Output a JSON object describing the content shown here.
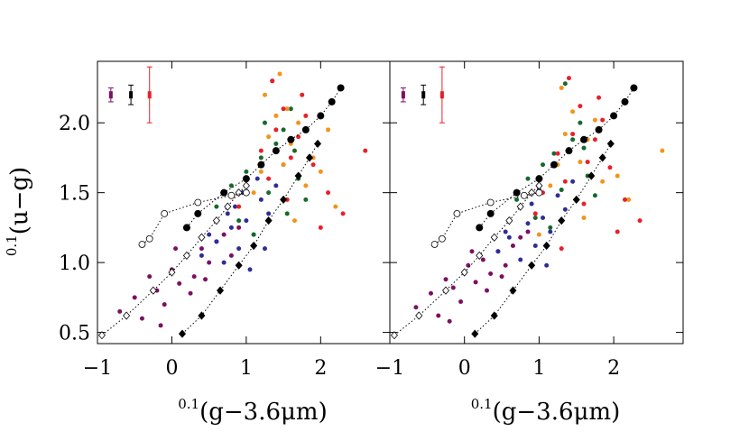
{
  "chart_data": [
    {
      "type": "scatter",
      "xlabel_sup": "0.1",
      "xlabel": "(g−3.6μm)",
      "ylabel_sup": "0.1",
      "ylabel": "(u−g)",
      "xlim": [
        -1,
        2.93
      ],
      "ylim": [
        0.42,
        2.44
      ],
      "xticks": [
        {
          "value": -1,
          "label": "−1"
        },
        0,
        1,
        2
      ],
      "yticks": [
        0.5,
        {
          "value": 1.0,
          "label": "1.0"
        },
        1.5,
        {
          "value": 2.0,
          "label": "2.0"
        }
      ],
      "show_yticklabels": true,
      "series": [
        {
          "color": "#7c1060",
          "marker": "circle-filled",
          "x": [
            -0.7,
            -0.5,
            -0.4,
            -0.3,
            -0.2,
            -0.1,
            0,
            0.1,
            0.2,
            0.3,
            0.4,
            0.5,
            0.6,
            0.7,
            0.9,
            -0.15,
            0.25,
            0.05,
            0.45,
            0.8
          ],
          "y": [
            0.65,
            0.75,
            0.6,
            0.9,
            0.8,
            0.7,
            0.95,
            0.85,
            1.05,
            0.9,
            1.1,
            1.0,
            1.15,
            1.2,
            1.25,
            0.55,
            0.78,
            1.1,
            0.88,
            1.05
          ]
        },
        {
          "color": "#2e2e94",
          "marker": "circle-filled",
          "x": [
            0.4,
            0.6,
            0.7,
            0.8,
            0.9,
            1.0,
            1.1,
            1.2,
            1.3,
            0.5,
            0.85,
            1.05,
            1.4,
            0.95,
            1.15,
            0.75,
            1.25,
            1.5
          ],
          "y": [
            1.05,
            1.15,
            1.0,
            1.25,
            1.1,
            1.3,
            1.2,
            1.45,
            1.35,
            1.2,
            1.4,
            0.95,
            1.55,
            1.5,
            1.6,
            1.35,
            1.1,
            1.7
          ]
        },
        {
          "color": "#17692b",
          "marker": "circle-filled",
          "x": [
            0.6,
            0.8,
            1.0,
            1.2,
            1.3,
            1.4,
            1.5,
            1.6,
            1.7,
            1.8,
            1.1,
            0.9,
            1.35,
            1.55,
            1.25,
            1.65
          ],
          "y": [
            1.4,
            1.55,
            1.65,
            1.75,
            1.5,
            1.85,
            1.95,
            2.1,
            1.6,
            1.45,
            1.2,
            1.3,
            2.3,
            1.35,
            2.0,
            1.8
          ]
        },
        {
          "color": "#f39419",
          "marker": "circle-filled",
          "x": [
            1.1,
            1.2,
            1.3,
            1.4,
            1.5,
            1.6,
            1.7,
            1.8,
            1.9,
            2.0,
            2.2,
            1.45,
            1.25,
            1.65,
            2.1,
            1.55
          ],
          "y": [
            1.5,
            1.65,
            1.9,
            2.05,
            1.7,
            1.85,
            2.0,
            1.55,
            1.75,
            1.65,
            1.4,
            2.35,
            2.2,
            1.3,
            1.95,
            2.1
          ]
        },
        {
          "color": "#e8202a",
          "marker": "circle-filled",
          "x": [
            1.0,
            1.2,
            1.3,
            1.4,
            1.5,
            1.6,
            1.7,
            1.8,
            1.9,
            2.1,
            2.3,
            2.6,
            1.35,
            1.55,
            1.75,
            2.0,
            0.9
          ],
          "y": [
            1.55,
            1.8,
            1.6,
            1.95,
            2.1,
            1.75,
            1.9,
            2.05,
            1.7,
            1.5,
            1.35,
            1.8,
            2.3,
            1.45,
            2.2,
            1.25,
            1.4
          ]
        },
        {
          "color": "#000000",
          "marker": "diamond-filled",
          "line": "dotted",
          "x": [
            0.14,
            0.4,
            0.65,
            0.9,
            1.1,
            1.3,
            1.5,
            1.7,
            1.85,
            1.96
          ],
          "y": [
            0.49,
            0.62,
            0.8,
            0.98,
            1.12,
            1.3,
            1.45,
            1.62,
            1.75,
            1.85
          ]
        },
        {
          "color": "#000000",
          "marker": "diamond-open",
          "line": "dotted",
          "x": [
            -0.94,
            -0.61,
            -0.25,
            0.0,
            0.2,
            0.4,
            0.6,
            0.75,
            0.9,
            1.0
          ],
          "y": [
            0.48,
            0.62,
            0.8,
            0.93,
            1.05,
            1.18,
            1.3,
            1.4,
            1.5,
            1.55
          ]
        },
        {
          "color": "#000000",
          "marker": "circle-open",
          "line": "dotted",
          "x": [
            -0.4,
            -0.3,
            -0.1,
            0.35,
            0.8,
            1.0
          ],
          "y": [
            1.13,
            1.17,
            1.35,
            1.43,
            1.48,
            1.5
          ]
        },
        {
          "color": "#000000",
          "marker": "circle-big",
          "line": "dotted",
          "x": [
            0.2,
            0.35,
            0.7,
            1.0,
            1.2,
            1.4,
            1.6,
            1.8,
            2.0,
            2.15,
            2.27
          ],
          "y": [
            1.25,
            1.35,
            1.5,
            1.6,
            1.7,
            1.8,
            1.88,
            1.95,
            2.05,
            2.15,
            2.25
          ]
        }
      ],
      "errorbars": {
        "x": [
          -0.82,
          -0.55,
          -0.3
        ],
        "y": [
          2.2,
          2.2,
          2.2
        ],
        "yerr": [
          0.05,
          0.07,
          0.2
        ],
        "colors": [
          "#7c1060",
          "#000000",
          "#e8202a"
        ]
      }
    },
    {
      "type": "scatter",
      "xlabel_sup": "0.1",
      "xlabel": "(g−3.6μm)",
      "xlim": [
        -1,
        2.93
      ],
      "ylim": [
        0.42,
        2.44
      ],
      "xticks": [
        {
          "value": -1,
          "label": "−1"
        },
        0,
        1,
        2
      ],
      "yticks": [
        0.5,
        1.0,
        1.5,
        2.0
      ],
      "show_yticklabels": false,
      "series": [
        {
          "color": "#7c1060",
          "marker": "circle-filled",
          "x": [
            -0.65,
            -0.45,
            -0.35,
            -0.25,
            -0.15,
            -0.05,
            0.05,
            0.15,
            0.25,
            0.35,
            0.45,
            0.55,
            0.65,
            0.75,
            0.85,
            -0.2,
            0.3,
            0.1,
            0.5
          ],
          "y": [
            0.68,
            0.78,
            0.62,
            0.88,
            0.82,
            0.72,
            0.98,
            0.86,
            1.02,
            0.92,
            1.08,
            0.98,
            1.12,
            1.18,
            1.22,
            0.58,
            0.8,
            1.08,
            0.9
          ]
        },
        {
          "color": "#2e2e94",
          "marker": "circle-filled",
          "x": [
            0.45,
            0.6,
            0.75,
            0.85,
            0.95,
            1.05,
            1.15,
            1.25,
            1.35,
            0.55,
            0.9,
            1.1,
            1.45,
            1.0
          ],
          "y": [
            1.08,
            1.18,
            1.02,
            1.28,
            1.12,
            1.32,
            1.22,
            1.48,
            1.38,
            1.22,
            1.42,
            0.98,
            1.58,
            1.52
          ]
        },
        {
          "color": "#17692b",
          "marker": "circle-filled",
          "x": [
            0.7,
            0.85,
            1.05,
            1.2,
            1.3,
            1.45,
            1.55,
            1.65,
            1.75,
            1.15,
            0.95,
            1.35,
            1.6
          ],
          "y": [
            1.45,
            1.6,
            1.7,
            1.78,
            1.52,
            1.88,
            2.0,
            1.62,
            1.48,
            1.25,
            1.32,
            2.28,
            1.82
          ]
        },
        {
          "color": "#f39419",
          "marker": "circle-filled",
          "x": [
            1.15,
            1.25,
            1.35,
            1.45,
            1.55,
            1.65,
            1.75,
            1.85,
            2.05,
            1.3,
            1.6,
            2.2,
            1.0,
            2.65
          ],
          "y": [
            1.55,
            1.7,
            1.92,
            2.08,
            1.72,
            1.88,
            2.02,
            1.58,
            1.62,
            2.25,
            1.32,
            1.45,
            1.2,
            1.8
          ]
        },
        {
          "color": "#e8202a",
          "marker": "circle-filled",
          "x": [
            1.05,
            1.25,
            1.35,
            1.45,
            1.55,
            1.65,
            1.75,
            1.85,
            1.95,
            2.15,
            2.35,
            1.4,
            1.6,
            1.8,
            2.05,
            0.95,
            1.3
          ],
          "y": [
            1.5,
            1.78,
            1.58,
            1.92,
            2.12,
            1.72,
            1.88,
            2.02,
            1.68,
            1.45,
            1.3,
            2.32,
            1.42,
            2.18,
            1.22,
            1.35,
            1.1
          ]
        },
        {
          "color": "#000000",
          "marker": "diamond-filled",
          "line": "dotted",
          "x": [
            0.14,
            0.4,
            0.65,
            0.9,
            1.1,
            1.3,
            1.5,
            1.7,
            1.85,
            1.96
          ],
          "y": [
            0.49,
            0.62,
            0.8,
            0.98,
            1.12,
            1.3,
            1.45,
            1.62,
            1.75,
            1.85
          ]
        },
        {
          "color": "#000000",
          "marker": "diamond-open",
          "line": "dotted",
          "x": [
            -0.94,
            -0.61,
            -0.25,
            0.0,
            0.2,
            0.4,
            0.6,
            0.75,
            0.9,
            1.0
          ],
          "y": [
            0.48,
            0.62,
            0.8,
            0.93,
            1.05,
            1.18,
            1.3,
            1.4,
            1.5,
            1.55
          ]
        },
        {
          "color": "#000000",
          "marker": "circle-open",
          "line": "dotted",
          "x": [
            -0.4,
            -0.3,
            -0.1,
            0.35,
            0.8,
            1.0
          ],
          "y": [
            1.13,
            1.17,
            1.35,
            1.43,
            1.48,
            1.5
          ]
        },
        {
          "color": "#000000",
          "marker": "circle-big",
          "line": "dotted",
          "x": [
            0.2,
            0.35,
            0.7,
            1.0,
            1.2,
            1.4,
            1.6,
            1.8,
            2.0,
            2.15,
            2.27
          ],
          "y": [
            1.25,
            1.35,
            1.5,
            1.6,
            1.7,
            1.8,
            1.88,
            1.95,
            2.05,
            2.15,
            2.25
          ]
        }
      ],
      "errorbars": {
        "x": [
          -0.82,
          -0.55,
          -0.3
        ],
        "y": [
          2.2,
          2.2,
          2.2
        ],
        "yerr": [
          0.05,
          0.07,
          0.2
        ],
        "colors": [
          "#7c1060",
          "#000000",
          "#e8202a"
        ]
      }
    }
  ]
}
